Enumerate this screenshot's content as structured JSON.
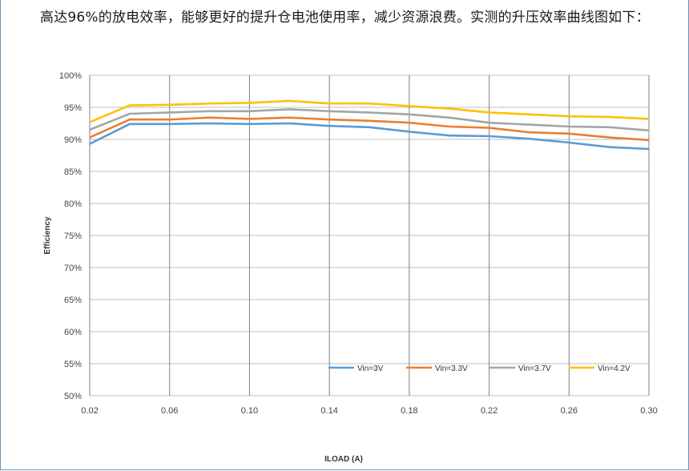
{
  "document": {
    "paragraph": "高达96%的放电效率，能够更好的提升仓电池使用率，减少资源浪费。实测的升压效率曲线图如下："
  },
  "chart_data": {
    "type": "line",
    "xlabel": "ILOAD (A)",
    "ylabel": "Efficiency",
    "xlim": [
      0.02,
      0.3
    ],
    "ylim": [
      50,
      100
    ],
    "x_ticks": [
      "0.02",
      "0.06",
      "0.10",
      "0.14",
      "0.18",
      "0.22",
      "0.26",
      "0.30"
    ],
    "y_ticks": [
      "100%",
      "95%",
      "90%",
      "85%",
      "80%",
      "75%",
      "70%",
      "65%",
      "60%",
      "55%",
      "50%"
    ],
    "grid": true,
    "legend_position": "bottom-right, inside plot",
    "x": [
      0.02,
      0.04,
      0.06,
      0.08,
      0.1,
      0.12,
      0.14,
      0.16,
      0.18,
      0.2,
      0.22,
      0.24,
      0.26,
      0.28,
      0.3
    ],
    "series": [
      {
        "name": "Vin=3V",
        "color": "#5b9bd5",
        "values": [
          89.3,
          92.4,
          92.4,
          92.5,
          92.4,
          92.5,
          92.1,
          91.9,
          91.2,
          90.6,
          90.5,
          90.1,
          89.5,
          88.8,
          88.5
        ]
      },
      {
        "name": "Vin=3.3V",
        "color": "#ed7d31",
        "values": [
          90.3,
          93.1,
          93.1,
          93.4,
          93.2,
          93.4,
          93.1,
          92.9,
          92.6,
          92.0,
          91.8,
          91.1,
          90.9,
          90.3,
          89.9
        ]
      },
      {
        "name": "Vin=3.7V",
        "color": "#a5a5a5",
        "values": [
          91.5,
          94.0,
          94.2,
          94.4,
          94.4,
          94.7,
          94.4,
          94.2,
          93.9,
          93.4,
          92.6,
          92.3,
          92.0,
          91.9,
          91.4
        ]
      },
      {
        "name": "Vin=4.2V",
        "color": "#ffc000",
        "values": [
          92.7,
          95.3,
          95.4,
          95.6,
          95.7,
          96.0,
          95.6,
          95.6,
          95.2,
          94.8,
          94.2,
          93.9,
          93.6,
          93.5,
          93.2
        ]
      }
    ]
  }
}
